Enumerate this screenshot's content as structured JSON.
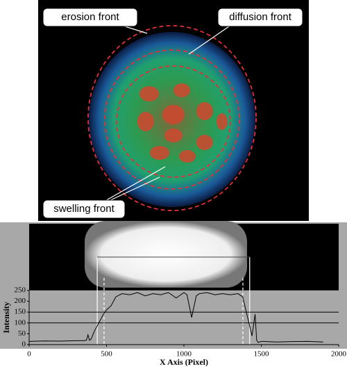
{
  "annotations": {
    "erosion": "erosion front",
    "diffusion": "diffusion front",
    "swelling": "swelling front"
  },
  "chart_data": {
    "type": "line",
    "xlabel": "X Axis (Pixel)",
    "ylabel": "Intensity",
    "xlim": [
      0,
      2000
    ],
    "xticks": [
      0,
      500,
      1000,
      1500,
      2000
    ],
    "ylim": [
      0,
      250
    ],
    "yticks": [
      0,
      50,
      100,
      150,
      200,
      250
    ],
    "hlines": [
      100,
      150
    ],
    "vlines": [
      440,
      1425
    ],
    "dashed_vlines": [
      484,
      1381
    ],
    "series": [
      {
        "color": "#000000",
        "x": [
          0,
          100,
          200,
          300,
          350,
          370,
          380,
          390,
          400,
          420,
          450,
          480,
          500,
          530,
          560,
          600,
          650,
          700,
          750,
          800,
          850,
          900,
          950,
          1000,
          1020,
          1050,
          1080,
          1100,
          1150,
          1200,
          1250,
          1300,
          1350,
          1380,
          1400,
          1420,
          1440,
          1460,
          1470,
          1480,
          1500,
          1600,
          1700,
          1800,
          1900
        ],
        "values": [
          15,
          17,
          16,
          18,
          18,
          20,
          45,
          20,
          25,
          60,
          100,
          140,
          160,
          180,
          220,
          235,
          230,
          240,
          225,
          235,
          230,
          240,
          215,
          240,
          230,
          125,
          225,
          235,
          240,
          230,
          235,
          230,
          235,
          220,
          160,
          100,
          40,
          140,
          20,
          10,
          15,
          12,
          14,
          15,
          12
        ]
      }
    ]
  }
}
